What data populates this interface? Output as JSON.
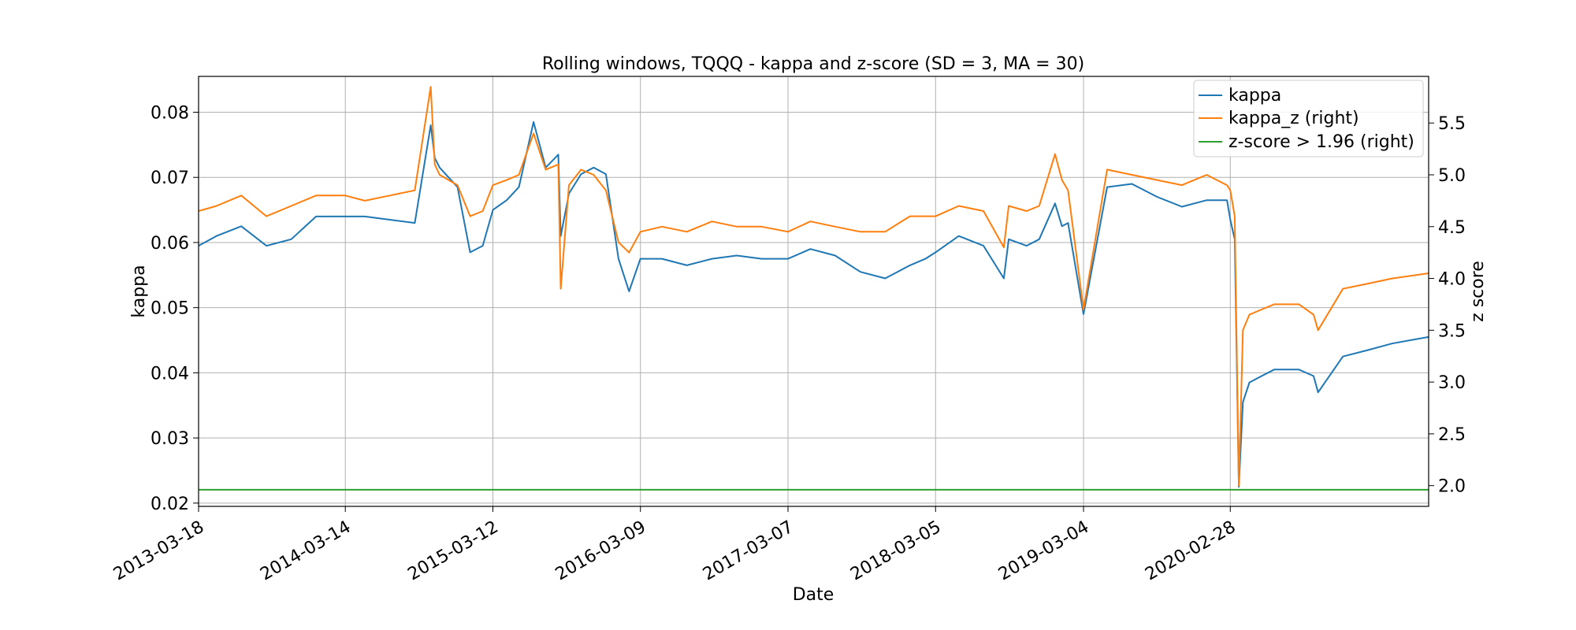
{
  "chart_data": {
    "type": "line",
    "title": "Rolling windows, TQQQ - kappa and z-score (SD = 3, MA = 30)",
    "xlabel": "Date",
    "ylabel": "kappa",
    "y2label": "z score",
    "grid": true,
    "legend_position": "top-right",
    "xlim": [
      "2013-03-18",
      "2021-06-30"
    ],
    "ylim": [
      0.0195,
      0.0855
    ],
    "y2lim": [
      1.8,
      5.95
    ],
    "x_ticks": [
      "2013-03-18",
      "2014-03-14",
      "2015-03-12",
      "2016-03-09",
      "2017-03-07",
      "2018-03-05",
      "2019-03-04",
      "2020-02-28"
    ],
    "y_ticks": [
      "0.02",
      "0.03",
      "0.04",
      "0.05",
      "0.06",
      "0.07",
      "0.08"
    ],
    "y2_ticks": [
      "2.0",
      "2.5",
      "3.0",
      "3.5",
      "4.0",
      "4.5",
      "5.0",
      "5.5"
    ],
    "series": [
      {
        "name": "kappa",
        "axis": "left",
        "color": "#1f77b4",
        "x": [
          "2013-03-18",
          "2013-05-01",
          "2013-07-01",
          "2013-09-01",
          "2013-11-01",
          "2014-01-01",
          "2014-03-14",
          "2014-05-01",
          "2014-07-01",
          "2014-09-01",
          "2014-10-10",
          "2014-10-20",
          "2014-11-01",
          "2014-12-15",
          "2015-01-15",
          "2015-02-15",
          "2015-03-12",
          "2015-04-15",
          "2015-05-15",
          "2015-06-20",
          "2015-07-20",
          "2015-08-20",
          "2015-08-26",
          "2015-09-15",
          "2015-10-15",
          "2015-11-15",
          "2015-12-15",
          "2016-01-15",
          "2016-02-10",
          "2016-03-09",
          "2016-05-01",
          "2016-07-01",
          "2016-09-01",
          "2016-11-01",
          "2017-01-01",
          "2017-03-07",
          "2017-05-01",
          "2017-07-01",
          "2017-09-01",
          "2017-11-01",
          "2018-01-01",
          "2018-02-08",
          "2018-03-05",
          "2018-05-01",
          "2018-07-01",
          "2018-08-20",
          "2018-09-01",
          "2018-10-15",
          "2018-11-15",
          "2018-12-24",
          "2019-01-10",
          "2019-01-25",
          "2019-03-04",
          "2019-05-01",
          "2019-07-01",
          "2019-09-01",
          "2019-11-01",
          "2020-01-01",
          "2020-02-20",
          "2020-02-28",
          "2020-03-10",
          "2020-03-20",
          "2020-03-30",
          "2020-04-15",
          "2020-05-15",
          "2020-06-15",
          "2020-08-15",
          "2020-09-20",
          "2020-10-01",
          "2020-12-01",
          "2021-02-01",
          "2021-04-01",
          "2021-06-30"
        ],
        "y": [
          0.0595,
          0.061,
          0.0625,
          0.0595,
          0.0605,
          0.064,
          0.064,
          0.064,
          0.0635,
          0.063,
          0.078,
          0.073,
          0.0715,
          0.0685,
          0.0585,
          0.0595,
          0.065,
          0.0665,
          0.0685,
          0.0785,
          0.0715,
          0.0735,
          0.061,
          0.0675,
          0.0705,
          0.0715,
          0.0705,
          0.0575,
          0.0525,
          0.0575,
          0.0575,
          0.0565,
          0.0575,
          0.058,
          0.0575,
          0.0575,
          0.059,
          0.058,
          0.0555,
          0.0545,
          0.0565,
          0.0575,
          0.0585,
          0.061,
          0.0595,
          0.0545,
          0.0605,
          0.0595,
          0.0605,
          0.066,
          0.0625,
          0.063,
          0.049,
          0.0685,
          0.069,
          0.067,
          0.0655,
          0.0665,
          0.0665,
          0.0635,
          0.0605,
          0.0225,
          0.0355,
          0.0385,
          0.0395,
          0.0405,
          0.0405,
          0.0395,
          0.037,
          0.0425,
          0.0435,
          0.0445,
          0.0455
        ]
      },
      {
        "name": "kappa_z (right)",
        "axis": "right",
        "color": "#ff7f0e",
        "x": [
          "2013-03-18",
          "2013-05-01",
          "2013-07-01",
          "2013-09-01",
          "2013-11-01",
          "2014-01-01",
          "2014-03-14",
          "2014-05-01",
          "2014-07-01",
          "2014-09-01",
          "2014-10-10",
          "2014-10-20",
          "2014-11-01",
          "2014-12-15",
          "2015-01-15",
          "2015-02-15",
          "2015-03-12",
          "2015-04-15",
          "2015-05-15",
          "2015-06-20",
          "2015-07-20",
          "2015-08-20",
          "2015-08-26",
          "2015-09-15",
          "2015-10-15",
          "2015-11-15",
          "2015-12-15",
          "2016-01-15",
          "2016-02-10",
          "2016-03-09",
          "2016-05-01",
          "2016-07-01",
          "2016-09-01",
          "2016-11-01",
          "2017-01-01",
          "2017-03-07",
          "2017-05-01",
          "2017-07-01",
          "2017-09-01",
          "2017-11-01",
          "2018-01-01",
          "2018-02-08",
          "2018-03-05",
          "2018-05-01",
          "2018-07-01",
          "2018-08-20",
          "2018-09-01",
          "2018-10-15",
          "2018-11-15",
          "2018-12-24",
          "2019-01-10",
          "2019-01-25",
          "2019-03-04",
          "2019-05-01",
          "2019-07-01",
          "2019-09-01",
          "2019-11-01",
          "2020-01-01",
          "2020-02-20",
          "2020-02-28",
          "2020-03-10",
          "2020-03-20",
          "2020-03-30",
          "2020-04-15",
          "2020-05-15",
          "2020-06-15",
          "2020-08-15",
          "2020-09-20",
          "2020-10-01",
          "2020-12-01",
          "2021-02-01",
          "2021-04-01",
          "2021-06-30"
        ],
        "y": [
          4.65,
          4.7,
          4.8,
          4.6,
          4.7,
          4.8,
          4.8,
          4.75,
          4.8,
          4.85,
          5.85,
          5.1,
          5.0,
          4.9,
          4.6,
          4.65,
          4.9,
          4.95,
          5.0,
          5.4,
          5.05,
          5.1,
          3.9,
          4.9,
          5.05,
          5.0,
          4.85,
          4.35,
          4.25,
          4.45,
          4.5,
          4.45,
          4.55,
          4.5,
          4.5,
          4.45,
          4.55,
          4.5,
          4.45,
          4.45,
          4.6,
          4.6,
          4.6,
          4.7,
          4.65,
          4.3,
          4.7,
          4.65,
          4.7,
          5.2,
          4.95,
          4.85,
          3.7,
          5.05,
          5.0,
          4.95,
          4.9,
          5.0,
          4.9,
          4.85,
          4.6,
          2.0,
          3.5,
          3.65,
          3.7,
          3.75,
          3.75,
          3.65,
          3.5,
          3.9,
          3.95,
          4.0,
          4.05
        ]
      },
      {
        "name": "z-score > 1.96 (right)",
        "axis": "right",
        "color": "#2ca02c",
        "x": [
          "2013-03-18",
          "2021-06-30"
        ],
        "y": [
          1.96,
          1.96
        ]
      }
    ]
  }
}
